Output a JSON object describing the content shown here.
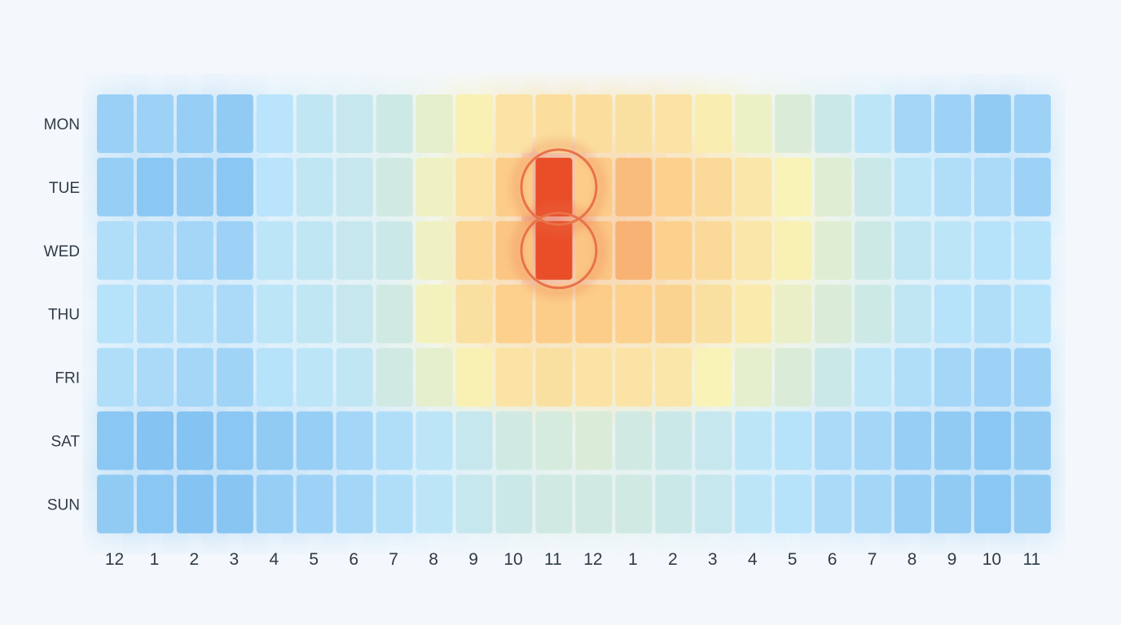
{
  "chart_data": {
    "type": "heatmap",
    "title": "",
    "xlabel": "",
    "ylabel": "",
    "rows": [
      "MON",
      "TUE",
      "WED",
      "THU",
      "FRI",
      "SAT",
      "SUN"
    ],
    "columns": [
      "12",
      "1",
      "2",
      "3",
      "4",
      "5",
      "6",
      "7",
      "8",
      "9",
      "10",
      "11",
      "12",
      "1",
      "2",
      "3",
      "4",
      "5",
      "6",
      "7",
      "8",
      "9",
      "10",
      "11"
    ],
    "values": [
      [
        0.15,
        0.16,
        0.14,
        0.12,
        0.25,
        0.28,
        0.3,
        0.33,
        0.42,
        0.52,
        0.6,
        0.64,
        0.63,
        0.62,
        0.6,
        0.54,
        0.45,
        0.38,
        0.32,
        0.26,
        0.18,
        0.16,
        0.12,
        0.16
      ],
      [
        0.14,
        0.1,
        0.12,
        0.1,
        0.25,
        0.28,
        0.3,
        0.34,
        0.46,
        0.6,
        0.74,
        1.0,
        0.74,
        0.78,
        0.72,
        0.66,
        0.58,
        0.5,
        0.4,
        0.32,
        0.26,
        0.22,
        0.2,
        0.16
      ],
      [
        0.22,
        0.2,
        0.18,
        0.16,
        0.26,
        0.28,
        0.3,
        0.32,
        0.46,
        0.68,
        0.76,
        1.0,
        0.76,
        0.8,
        0.72,
        0.66,
        0.58,
        0.52,
        0.4,
        0.33,
        0.28,
        0.26,
        0.24,
        0.24
      ],
      [
        0.24,
        0.22,
        0.22,
        0.2,
        0.26,
        0.28,
        0.3,
        0.34,
        0.48,
        0.62,
        0.72,
        0.74,
        0.74,
        0.72,
        0.7,
        0.62,
        0.55,
        0.44,
        0.38,
        0.33,
        0.28,
        0.24,
        0.22,
        0.24
      ],
      [
        0.22,
        0.2,
        0.18,
        0.17,
        0.24,
        0.26,
        0.28,
        0.34,
        0.42,
        0.52,
        0.6,
        0.62,
        0.6,
        0.6,
        0.58,
        0.5,
        0.42,
        0.38,
        0.32,
        0.26,
        0.22,
        0.18,
        0.16,
        0.16
      ],
      [
        0.1,
        0.08,
        0.08,
        0.1,
        0.12,
        0.14,
        0.18,
        0.22,
        0.26,
        0.3,
        0.34,
        0.36,
        0.38,
        0.34,
        0.32,
        0.3,
        0.26,
        0.24,
        0.2,
        0.18,
        0.14,
        0.12,
        0.1,
        0.12
      ],
      [
        0.12,
        0.1,
        0.08,
        0.09,
        0.14,
        0.16,
        0.18,
        0.22,
        0.26,
        0.3,
        0.32,
        0.34,
        0.34,
        0.34,
        0.32,
        0.3,
        0.26,
        0.24,
        0.2,
        0.18,
        0.14,
        0.12,
        0.1,
        0.12
      ]
    ],
    "highlighted_cells": [
      {
        "row": "TUE",
        "column": "11",
        "column_index": 11
      },
      {
        "row": "WED",
        "column": "11",
        "column_index": 11
      }
    ],
    "color_scale": [
      "#6cb3ee",
      "#b9e4fb",
      "#f9f3b7",
      "#fccb87",
      "#e94e29"
    ],
    "highlight_ring_color": "#e8724a",
    "grid": false,
    "legend": "none"
  }
}
